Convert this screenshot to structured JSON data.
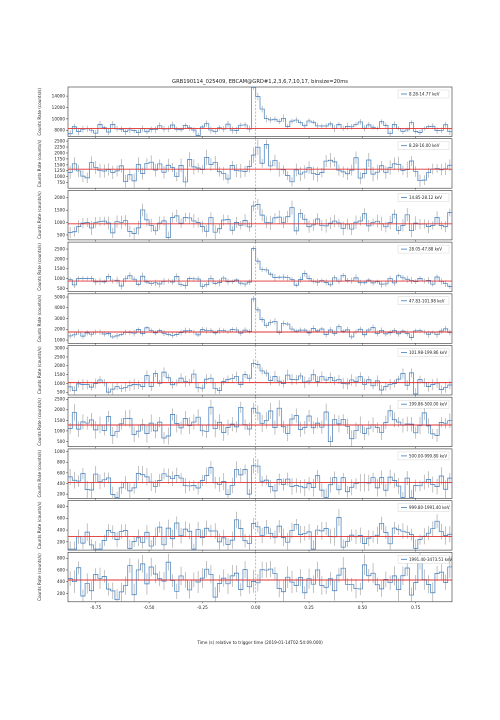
{
  "title": "GRB190114_025409, EBCAM@GRD#1,2,3,6,7,10,17, binsize=20ms",
  "xlabel": "Time (s) relative to trigger time (2019-01-14T02:54:09.000)",
  "ylabel": "Counts Rate (counts/s)",
  "colors": {
    "line": "#3b7bbd",
    "bg": "#e03030",
    "err": "#9a9a9a",
    "trig": "#e03030"
  },
  "x_ticks": [
    "-0.75",
    "-0.50",
    "-0.25",
    "0.00",
    "0.25",
    "0.50",
    "0.75"
  ],
  "chart_data": {
    "type": "line",
    "xlim": [
      -0.88,
      0.92
    ],
    "bin": 0.02,
    "trigger_x": 0.0,
    "panels": [
      {
        "legend": "8.28-14.77 keV",
        "yticks": [
          8000,
          10000,
          12000,
          14000
        ],
        "ylim": [
          6900,
          15600
        ],
        "bg": 8300,
        "peak": 6900,
        "tail": 2800,
        "noise": 500,
        "seed": 11
      },
      {
        "legend": "8.28-16.00 keV",
        "yticks": [
          750,
          1000,
          1250,
          1500,
          1750,
          2000,
          2250,
          2500
        ],
        "ylim": [
          520,
          2600
        ],
        "bg": 1320,
        "peak": 700,
        "tail": 350,
        "noise": 260,
        "seed": 23
      },
      {
        "legend": "14.85-28.12 keV",
        "yticks": [
          500,
          1000,
          1500,
          2000
        ],
        "ylim": [
          300,
          2300
        ],
        "bg": 950,
        "peak": 650,
        "tail": 300,
        "noise": 220,
        "seed": 37
      },
      {
        "legend": "28.05-47.88 keV",
        "yticks": [
          500,
          1000,
          1500,
          2000,
          2500
        ],
        "ylim": [
          350,
          2850
        ],
        "bg": 880,
        "peak": 1800,
        "tail": 350,
        "noise": 140,
        "seed": 41
      },
      {
        "legend": "47.83-101.98 keV",
        "yticks": [
          1000,
          2000,
          3000,
          4000,
          5000
        ],
        "ylim": [
          700,
          5300
        ],
        "bg": 1750,
        "peak": 3300,
        "tail": 700,
        "noise": 230,
        "seed": 53
      },
      {
        "legend": "101.98-199.86 keV",
        "yticks": [
          500,
          1000,
          1500,
          2000,
          2500,
          3000
        ],
        "ylim": [
          350,
          3150
        ],
        "bg": 1050,
        "peak": 1200,
        "tail": 550,
        "noise": 260,
        "seed": 67
      },
      {
        "legend": "199.86-500.00 keV",
        "yticks": [
          500,
          1000,
          1500,
          2000,
          2500
        ],
        "ylim": [
          250,
          2600
        ],
        "bg": 1280,
        "peak": 550,
        "tail": 250,
        "noise": 330,
        "seed": 71
      },
      {
        "legend": "500.00-999.80 keV",
        "yticks": [
          200,
          400,
          600,
          800,
          1000
        ],
        "ylim": [
          120,
          1050
        ],
        "bg": 420,
        "peak": 250,
        "tail": 80,
        "noise": 130,
        "seed": 83
      },
      {
        "legend": "999.80-1991.40 keV",
        "yticks": [
          200,
          400,
          600,
          800
        ],
        "ylim": [
          60,
          900
        ],
        "bg": 290,
        "peak": 70,
        "tail": 30,
        "noise": 120,
        "seed": 97
      },
      {
        "legend": "1991.40-3473.51 keV",
        "yticks": [
          200,
          400,
          600,
          800
        ],
        "ylim": [
          60,
          900
        ],
        "bg": 430,
        "peak": 60,
        "tail": 20,
        "noise": 150,
        "seed": 101
      }
    ]
  }
}
